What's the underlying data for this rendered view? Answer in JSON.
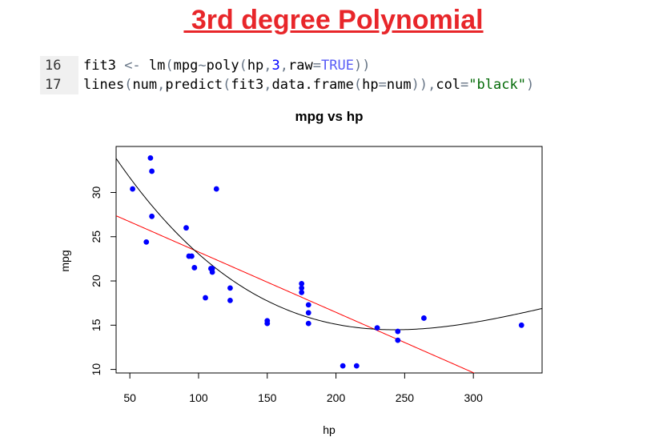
{
  "slide": {
    "title": " 3rd degree Polynomial"
  },
  "code": {
    "lines": [
      {
        "number": "16",
        "text": "fit3 <- lm(mpg~poly(hp,3,raw=TRUE))"
      },
      {
        "number": "17",
        "text": "lines(num,predict(fit3,data.frame(hp=num)),col=\"black\")"
      }
    ]
  },
  "chart_data": {
    "type": "scatter",
    "title": "mpg vs hp",
    "xlabel": "hp",
    "ylabel": "mpg",
    "xlim": [
      40,
      350
    ],
    "ylim": [
      9.6,
      35.2
    ],
    "xticks": [
      50,
      100,
      150,
      200,
      250,
      300
    ],
    "yticks": [
      10,
      15,
      20,
      25,
      30
    ],
    "grid": false,
    "point_color": "#0000ff",
    "points": [
      {
        "x": 52,
        "y": 30.4
      },
      {
        "x": 62,
        "y": 24.4
      },
      {
        "x": 65,
        "y": 33.9
      },
      {
        "x": 66,
        "y": 32.4
      },
      {
        "x": 66,
        "y": 27.3
      },
      {
        "x": 91,
        "y": 26.0
      },
      {
        "x": 93,
        "y": 22.8
      },
      {
        "x": 95,
        "y": 22.8
      },
      {
        "x": 97,
        "y": 21.5
      },
      {
        "x": 105,
        "y": 18.1
      },
      {
        "x": 109,
        "y": 21.4
      },
      {
        "x": 110,
        "y": 21.0
      },
      {
        "x": 110,
        "y": 21.4
      },
      {
        "x": 113,
        "y": 30.4
      },
      {
        "x": 123,
        "y": 19.2
      },
      {
        "x": 123,
        "y": 17.8
      },
      {
        "x": 150,
        "y": 15.5
      },
      {
        "x": 150,
        "y": 15.2
      },
      {
        "x": 175,
        "y": 18.7
      },
      {
        "x": 175,
        "y": 19.2
      },
      {
        "x": 175,
        "y": 19.7
      },
      {
        "x": 180,
        "y": 16.4
      },
      {
        "x": 180,
        "y": 17.3
      },
      {
        "x": 180,
        "y": 15.2
      },
      {
        "x": 205,
        "y": 10.4
      },
      {
        "x": 215,
        "y": 10.4
      },
      {
        "x": 230,
        "y": 14.7
      },
      {
        "x": 245,
        "y": 13.3
      },
      {
        "x": 245,
        "y": 14.3
      },
      {
        "x": 264,
        "y": 15.8
      },
      {
        "x": 335,
        "y": 15.0
      }
    ],
    "lines": [
      {
        "type": "linear",
        "color": "#ff0000",
        "coef": [
          30.0989,
          -0.068228
        ]
      },
      {
        "type": "cubic",
        "color": "#000000",
        "coef": [
          44.22,
          -0.2945,
          0.000913,
          -8.42e-07
        ]
      }
    ]
  }
}
